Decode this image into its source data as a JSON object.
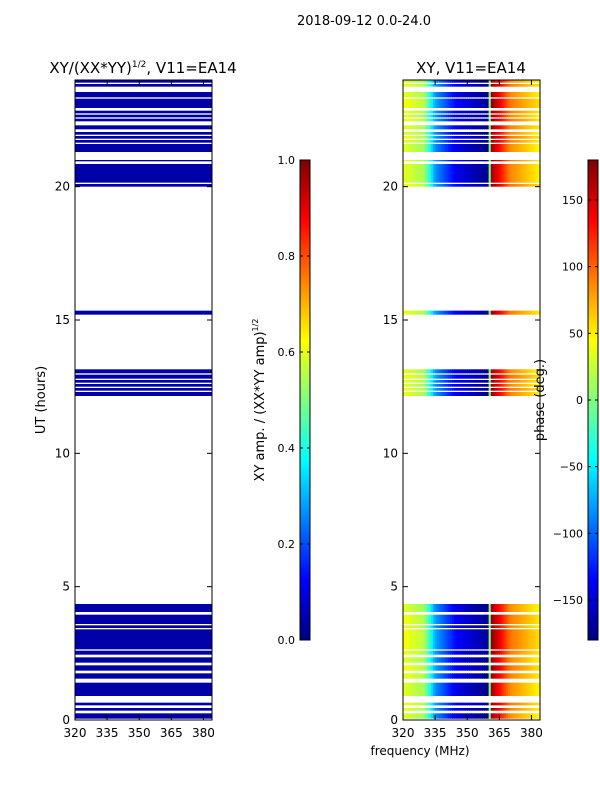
{
  "suptitle": "2018-09-12 0.0-24.0",
  "colors": {
    "jet": [
      "#00007f",
      "#0000ff",
      "#007fff",
      "#00ffff",
      "#7fff7f",
      "#ffff00",
      "#ff7f00",
      "#ff0000",
      "#7f0000"
    ],
    "frame": "#000000"
  },
  "chart_data": [
    {
      "id": "amplitude",
      "type": "heatmap",
      "title": "XY/(XX*YY)",
      "title_sup": "1/2",
      "title_suffix": ", V11=EA14",
      "xlabel": "",
      "ylabel": "UT (hours)",
      "xlim": [
        320,
        384
      ],
      "ylim": [
        0,
        24
      ],
      "x_ticks": [
        320,
        335,
        350,
        365,
        380
      ],
      "y_ticks": [
        0,
        5,
        10,
        15,
        20
      ],
      "colorbar": {
        "label": "XY amp. / (XX*YY amp)",
        "label_sup": "1/2",
        "range": [
          0.0,
          1.0
        ],
        "ticks": [
          0.0,
          0.2,
          0.4,
          0.6,
          0.8,
          1.0
        ],
        "tick_labels": [
          "0.0",
          "0.2",
          "0.4",
          "0.6",
          "0.8",
          "1.0"
        ]
      },
      "value_description": "amplitude ~0.02 (dark blue) at all frequencies where data present"
    },
    {
      "id": "phase",
      "type": "heatmap",
      "title": "XY, V11=EA14",
      "xlabel": "frequency (MHz)",
      "ylabel": "",
      "xlim": [
        320,
        384
      ],
      "ylim": [
        0,
        24
      ],
      "x_ticks": [
        320,
        335,
        350,
        365,
        380
      ],
      "y_ticks": [
        0,
        5,
        10,
        15,
        20
      ],
      "colorbar": {
        "label": "phase (deg.)",
        "range": [
          -180,
          180
        ],
        "ticks": [
          -150,
          -100,
          -50,
          0,
          50,
          100,
          150
        ],
        "tick_labels": [
          "−150",
          "−100",
          "−50",
          "0",
          "50",
          "100",
          "150"
        ]
      },
      "phase_profile_deg": {
        "freq_mhz": [
          320,
          330,
          335,
          345,
          360,
          361,
          370,
          384
        ],
        "phase": [
          40,
          15,
          -80,
          -140,
          -175,
          175,
          90,
          50
        ]
      }
    }
  ],
  "data_bands_hours": [
    [
      0.05,
      0.25
    ],
    [
      0.35,
      0.45
    ],
    [
      0.55,
      0.65
    ],
    [
      0.9,
      1.4
    ],
    [
      1.55,
      1.75
    ],
    [
      1.85,
      2.05
    ],
    [
      2.15,
      2.35
    ],
    [
      2.45,
      2.6
    ],
    [
      2.65,
      3.4
    ],
    [
      3.45,
      3.55
    ],
    [
      3.6,
      3.95
    ],
    [
      4.05,
      4.35
    ],
    [
      12.15,
      12.3
    ],
    [
      12.35,
      12.45
    ],
    [
      12.5,
      12.6
    ],
    [
      12.65,
      12.75
    ],
    [
      12.8,
      12.95
    ],
    [
      13.0,
      13.15
    ],
    [
      15.2,
      15.35
    ],
    [
      20.0,
      20.1
    ],
    [
      20.15,
      20.85
    ],
    [
      20.95,
      21.0
    ],
    [
      21.3,
      21.6
    ],
    [
      21.65,
      21.75
    ],
    [
      21.8,
      21.9
    ],
    [
      21.95,
      22.05
    ],
    [
      22.15,
      22.3
    ],
    [
      22.45,
      22.55
    ],
    [
      22.6,
      22.7
    ],
    [
      22.75,
      22.85
    ],
    [
      22.95,
      23.3
    ],
    [
      23.35,
      23.55
    ],
    [
      23.75,
      23.85
    ],
    [
      23.9,
      24.0
    ]
  ]
}
